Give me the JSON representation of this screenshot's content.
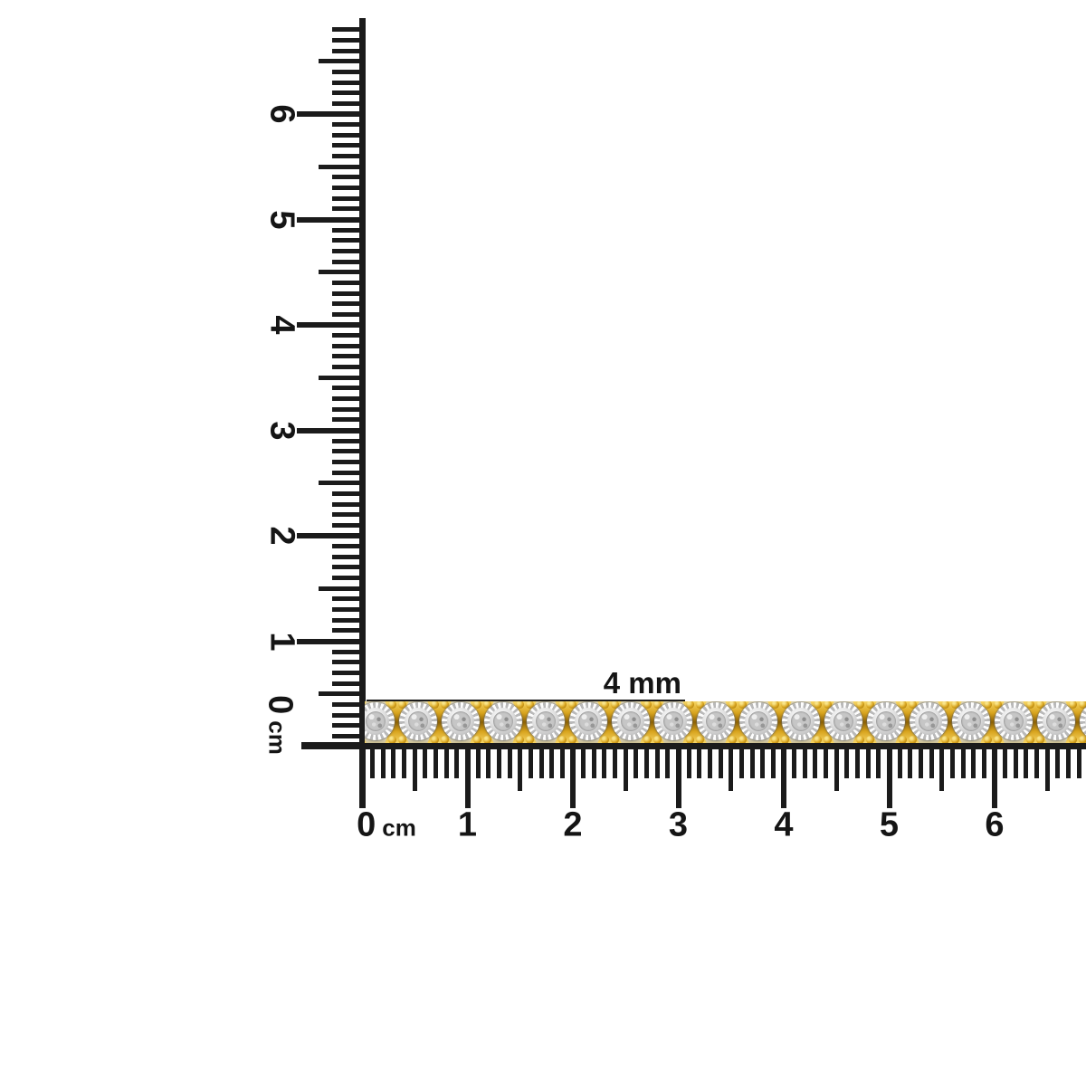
{
  "image": {
    "background": "#ffffff"
  },
  "annotation": {
    "width_label": "4 mm"
  },
  "rulers": {
    "color": "#1b1b1b",
    "vertical": {
      "unit": "cm",
      "numbers": [
        "0",
        "1",
        "2",
        "3",
        "4",
        "5",
        "6"
      ],
      "zero_label": "0 cm"
    },
    "horizontal": {
      "unit": "cm",
      "numbers": [
        "0",
        "1",
        "2",
        "3",
        "4",
        "5",
        "6"
      ],
      "zero_label": "0 cm"
    }
  },
  "bracelet": {
    "link_count": 18,
    "colors": {
      "gold": "#d8a41e",
      "gold_light": "#f6d564",
      "gold_dark": "#8f6408",
      "silver_light": "#fdfdfd",
      "silver_shade": "#b9b9b9",
      "diamond_light": "#eeeeee",
      "diamond": "#a8a8a8"
    }
  }
}
